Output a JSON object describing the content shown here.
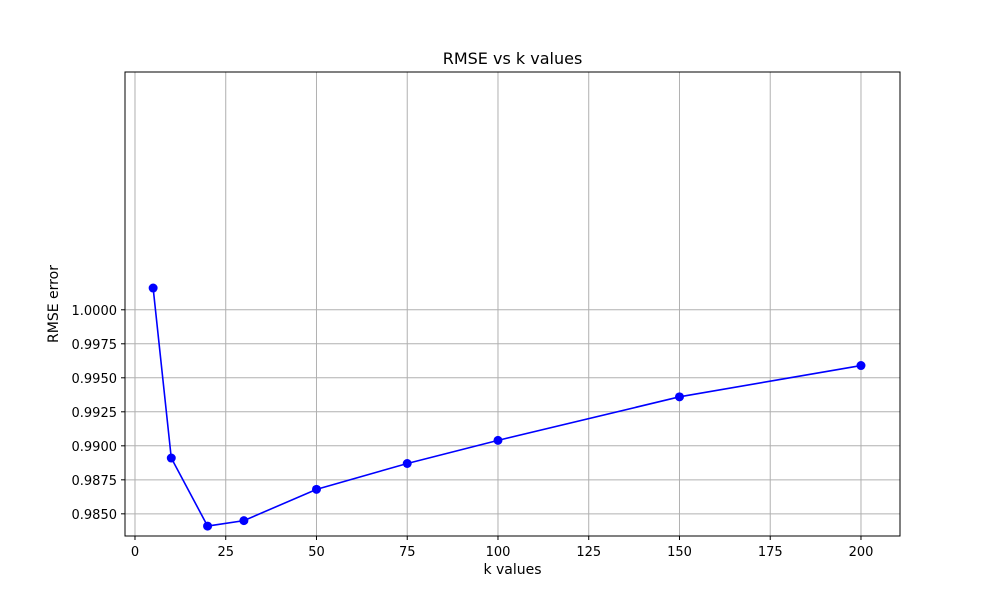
{
  "chart_data": {
    "type": "line",
    "title": "RMSE vs k values",
    "xlabel": "k values",
    "ylabel": "RMSE error",
    "xlim": [
      -2.75,
      210.75
    ],
    "ylim": [
      0.98337,
      1.01748
    ],
    "xticks": [
      0,
      25,
      50,
      75,
      100,
      125,
      150,
      175,
      200
    ],
    "xtick_labels": [
      "0",
      "25",
      "50",
      "75",
      "100",
      "125",
      "150",
      "175",
      "200"
    ],
    "yticks": [
      0.985,
      0.9875,
      0.99,
      0.9925,
      0.995,
      0.9975,
      1.0
    ],
    "ytick_labels": [
      "0.9850",
      "0.9875",
      "0.9900",
      "0.9925",
      "0.9950",
      "0.9975",
      "1.0000"
    ],
    "grid": true,
    "series": [
      {
        "color": "#0000ff",
        "marker": "circle",
        "x": [
          5,
          10,
          20,
          30,
          50,
          75,
          100,
          150,
          200
        ],
        "y": [
          1.0016,
          0.9891,
          0.9841,
          0.9845,
          0.9868,
          0.9887,
          0.9904,
          0.9936,
          0.9959
        ]
      }
    ]
  }
}
